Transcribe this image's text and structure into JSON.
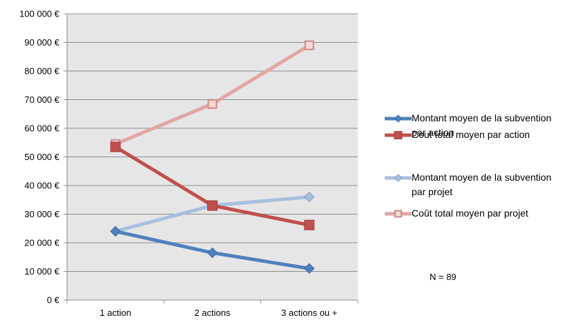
{
  "chart_data": {
    "type": "line",
    "categories": [
      "1 action",
      "2 actions",
      "3 actions ou +"
    ],
    "y_ticks": [
      "0 €",
      "10 000 €",
      "20 000 €",
      "30 000 €",
      "40 000 €",
      "50 000 €",
      "60 000 €",
      "70 000 €",
      "80 000 €",
      "90 000 €",
      "100 000 €"
    ],
    "ylim": [
      0,
      100000
    ],
    "grid": true,
    "legend_position": "right",
    "series": [
      {
        "name_lines": [
          "Montant moyen de la subvention",
          "par action"
        ],
        "values": [
          24000,
          16500,
          11000
        ],
        "color": "#4f81bd",
        "marker": "diamond",
        "style": "solid"
      },
      {
        "name_lines": [
          "Cout total moyen par action"
        ],
        "values": [
          53500,
          33000,
          26200
        ],
        "color": "#c0504d",
        "marker": "square",
        "style": "solid"
      },
      {
        "name_lines": [
          "Montant moyen de la subvention",
          "par projet"
        ],
        "values": [
          24000,
          33000,
          36000
        ],
        "color": "#a7c0de",
        "marker": "diamond",
        "style": "light"
      },
      {
        "name_lines": [
          "Coût total moyen par projet"
        ],
        "values": [
          54500,
          68500,
          89000
        ],
        "color": "#e2a6a5",
        "marker": "square-open",
        "style": "light"
      }
    ],
    "annotation": "N = 89"
  }
}
